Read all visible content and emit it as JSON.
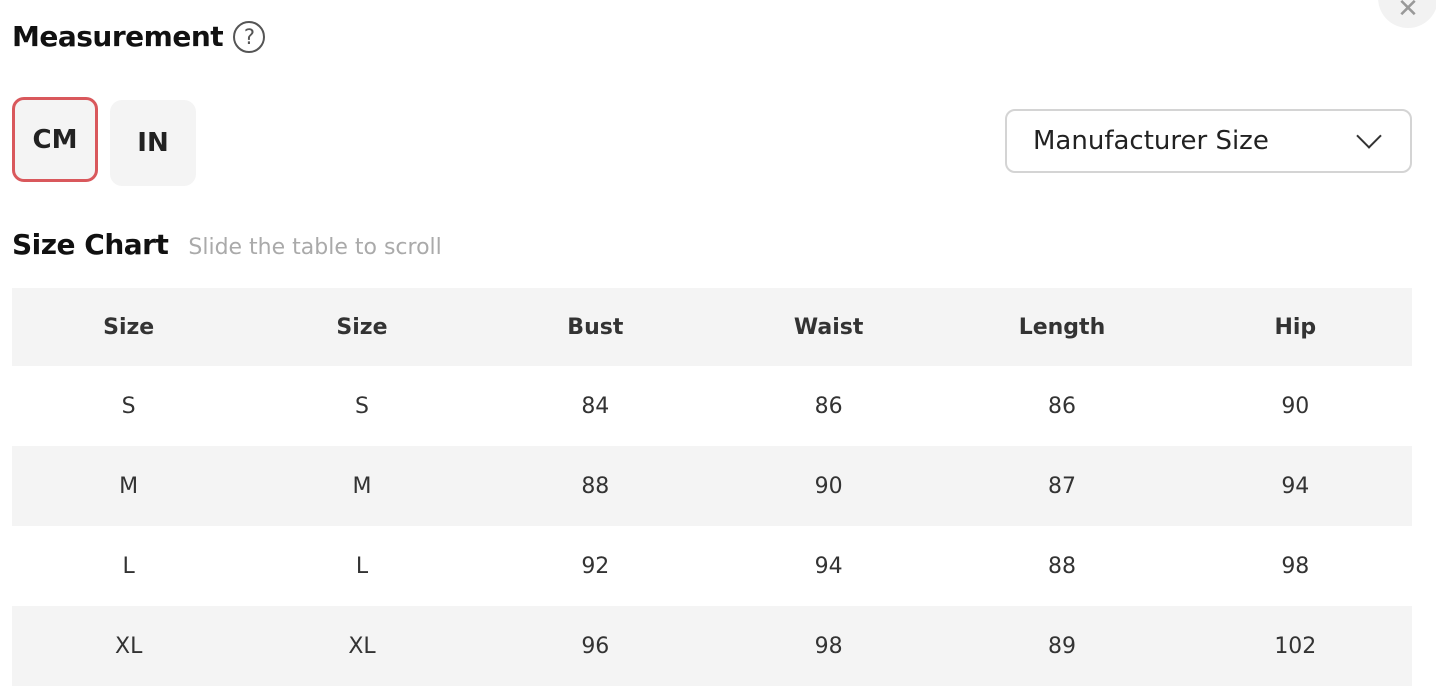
{
  "header": {
    "title": "Measurement",
    "help_icon": "question-circle-icon",
    "close_icon": "close-icon"
  },
  "units": {
    "options": [
      "CM",
      "IN"
    ],
    "selected": "CM",
    "accent_color": "#d9585c"
  },
  "size_select": {
    "value": "Manufacturer Size"
  },
  "size_chart": {
    "title": "Size Chart",
    "hint": "Slide the table to scroll"
  },
  "table": {
    "columns": [
      "Size",
      "Size",
      "Bust",
      "Waist",
      "Length",
      "Hip"
    ],
    "rows": [
      [
        "S",
        "S",
        "84",
        "86",
        "86",
        "90"
      ],
      [
        "M",
        "M",
        "88",
        "90",
        "87",
        "94"
      ],
      [
        "L",
        "L",
        "92",
        "94",
        "88",
        "98"
      ],
      [
        "XL",
        "XL",
        "96",
        "98",
        "89",
        "102"
      ]
    ]
  }
}
